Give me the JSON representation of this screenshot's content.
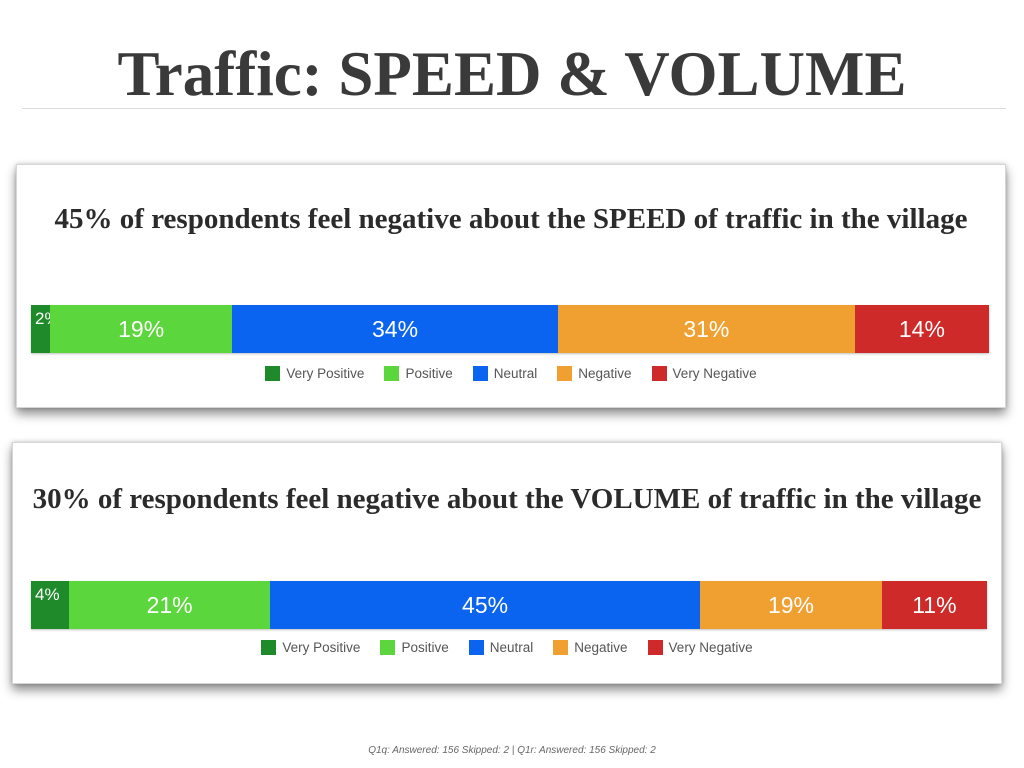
{
  "slide": {
    "title": "Traffic: SPEED & VOLUME",
    "footer": "Q1q: Answered: 156  Skipped: 2 | Q1r: Answered: 156  Skipped: 2"
  },
  "colors": {
    "Very Positive": "#1f8a2a",
    "Positive": "#5bd63c",
    "Neutral": "#0a64f0",
    "Negative": "#f0a030",
    "Very Negative": "#cf2a2a"
  },
  "chart_data": [
    {
      "type": "bar",
      "orientation": "horizontal-stacked-100",
      "headline_pct": "45%",
      "headline_text": "of respondents feel negative about the SPEED of traffic in the village",
      "categories": [
        "Very Positive",
        "Positive",
        "Neutral",
        "Negative",
        "Very Negative"
      ],
      "values": [
        2,
        19,
        34,
        31,
        14
      ],
      "labels": [
        "2%",
        "19%",
        "34%",
        "31%",
        "14%"
      ],
      "legend": [
        "Very Positive",
        "Positive",
        "Neutral",
        "Negative",
        "Very Negative"
      ],
      "legend_position": "bottom-center"
    },
    {
      "type": "bar",
      "orientation": "horizontal-stacked-100",
      "headline_pct": "30%",
      "headline_text": "of respondents feel negative about the VOLUME of traffic in the village",
      "categories": [
        "Very Positive",
        "Positive",
        "Neutral",
        "Negative",
        "Very Negative"
      ],
      "values": [
        4,
        21,
        45,
        19,
        11
      ],
      "labels": [
        "4%",
        "21%",
        "45%",
        "19%",
        "11%"
      ],
      "legend": [
        "Very Positive",
        "Positive",
        "Neutral",
        "Negative",
        "Very Negative"
      ],
      "legend_position": "bottom-center"
    }
  ]
}
